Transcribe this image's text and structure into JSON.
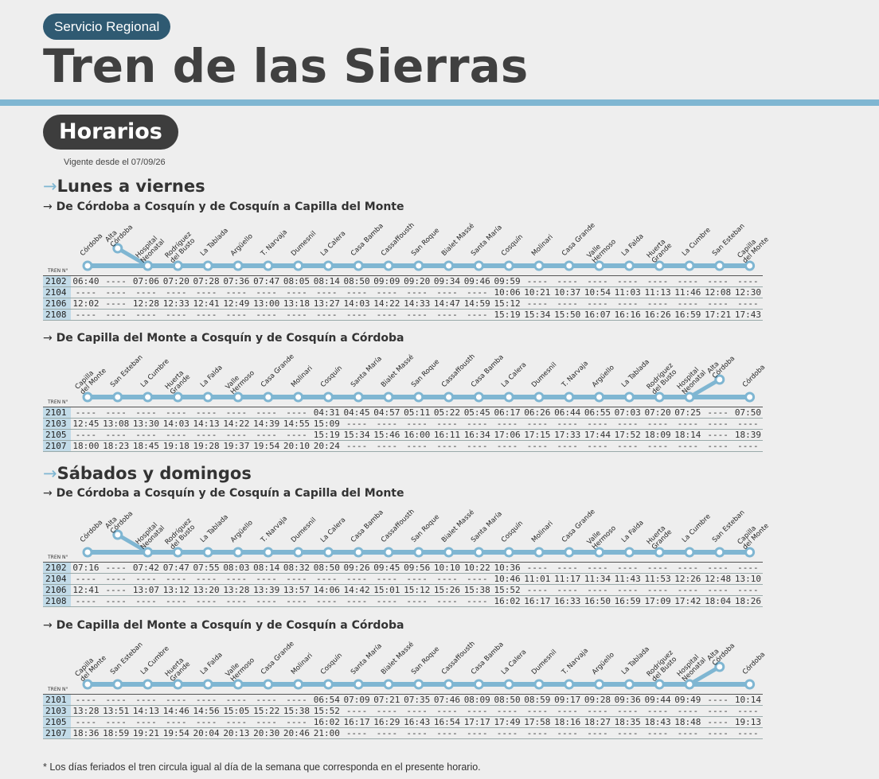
{
  "header": {
    "service": "Servicio Regional",
    "title": "Tren de las Sierras"
  },
  "horarios_label": "Horarios",
  "vigente": "Vigente desde el 07/09/26",
  "tren_label": "TREN N°",
  "footnote": "* Los días feriados el tren circula igual al día de la semana que corresponda en el presente horario.",
  "colors": {
    "accent": "#7fb6d2",
    "dark": "#3d3d3d",
    "pill": "#2f5a72",
    "train_cell": "#c2dbe8"
  },
  "sections": [
    {
      "title": "Lunes a viernes",
      "blocks": [
        {
          "subtitle": "De Córdoba a Cosquín y de Cosquín a Capilla del Monte",
          "stations": [
            "Córdoba",
            "Alta\nCórdoba",
            "Hospital\nNeonatal",
            "Rodríguez\ndel Busto",
            "La Tablada",
            "Argüello",
            "T. Narvaja",
            "Dumesnil",
            "La Calera",
            "Casa Bamba",
            "Cassaffousth",
            "San Roque",
            "Bialet Massé",
            "Santa María",
            "Cosquín",
            "Molinari",
            "Casa Grande",
            "Valle\nHermoso",
            "La Falda",
            "Huerta\nGrande",
            "La Cumbre",
            "San Esteban",
            "Capilla\ndel Monte"
          ],
          "rows": [
            [
              "2102",
              "06:40",
              "----",
              "07:06",
              "07:20",
              "07:28",
              "07:36",
              "07:47",
              "08:05",
              "08:14",
              "08:50",
              "09:09",
              "09:20",
              "09:34",
              "09:46",
              "09:59",
              "----",
              "----",
              "----",
              "----",
              "----",
              "----",
              "----",
              "----"
            ],
            [
              "2104",
              "----",
              "----",
              "----",
              "----",
              "----",
              "----",
              "----",
              "----",
              "----",
              "----",
              "----",
              "----",
              "----",
              "----",
              "10:06",
              "10:21",
              "10:37",
              "10:54",
              "11:03",
              "11:13",
              "11:46",
              "12:08",
              "12:30"
            ],
            [
              "2106",
              "12:02",
              "----",
              "12:28",
              "12:33",
              "12:41",
              "12:49",
              "13:00",
              "13:18",
              "13:27",
              "14:03",
              "14:22",
              "14:33",
              "14:47",
              "14:59",
              "15:12",
              "----",
              "----",
              "----",
              "----",
              "----",
              "----",
              "----",
              "----"
            ],
            [
              "2108",
              "----",
              "----",
              "----",
              "----",
              "----",
              "----",
              "----",
              "----",
              "----",
              "----",
              "----",
              "----",
              "----",
              "----",
              "15:19",
              "15:34",
              "15:50",
              "16:07",
              "16:16",
              "16:26",
              "16:59",
              "17:21",
              "17:43"
            ]
          ]
        },
        {
          "subtitle": "De Capilla del Monte a Cosquín y de Cosquín a Córdoba",
          "stations": [
            "Capilla\ndel Monte",
            "San Esteban",
            "La Cumbre",
            "Huerta\nGrande",
            "La Falda",
            "Valle\nHermoso",
            "Casa Grande",
            "Molinari",
            "Cosquín",
            "Santa María",
            "Bialet Massé",
            "San Roque",
            "Cassaffousth",
            "Casa Bamba",
            "La Calera",
            "Dumesnil",
            "T. Narvaja",
            "Argüello",
            "La Tablada",
            "Rodríguez\ndel Busto",
            "Hospital\nNeonatal",
            "Alta\nCórdoba",
            "Córdoba"
          ],
          "rows": [
            [
              "2101",
              "----",
              "----",
              "----",
              "----",
              "----",
              "----",
              "----",
              "----",
              "04:31",
              "04:45",
              "04:57",
              "05:11",
              "05:22",
              "05:45",
              "06:17",
              "06:26",
              "06:44",
              "06:55",
              "07:03",
              "07:20",
              "07:25",
              "----",
              "07:50"
            ],
            [
              "2103",
              "12:45",
              "13:08",
              "13:30",
              "14:03",
              "14:13",
              "14:22",
              "14:39",
              "14:55",
              "15:09",
              "----",
              "----",
              "----",
              "----",
              "----",
              "----",
              "----",
              "----",
              "----",
              "----",
              "----",
              "----",
              "----",
              "----"
            ],
            [
              "2105",
              "----",
              "----",
              "----",
              "----",
              "----",
              "----",
              "----",
              "----",
              "15:19",
              "15:34",
              "15:46",
              "16:00",
              "16:11",
              "16:34",
              "17:06",
              "17:15",
              "17:33",
              "17:44",
              "17:52",
              "18:09",
              "18:14",
              "----",
              "18:39"
            ],
            [
              "2107",
              "18:00",
              "18:23",
              "18:45",
              "19:18",
              "19:28",
              "19:37",
              "19:54",
              "20:10",
              "20:24",
              "----",
              "----",
              "----",
              "----",
              "----",
              "----",
              "----",
              "----",
              "----",
              "----",
              "----",
              "----",
              "----",
              "----"
            ]
          ]
        }
      ]
    },
    {
      "title": "Sábados y domingos",
      "blocks": [
        {
          "subtitle": "De Córdoba a Cosquín y de Cosquín a Capilla del Monte",
          "stations": [
            "Córdoba",
            "Alta\nCórdoba",
            "Hospital\nNeonatal",
            "Rodríguez\ndel Busto",
            "La Tablada",
            "Argüello",
            "T. Narvaja",
            "Dumesnil",
            "La Calera",
            "Casa Bamba",
            "Cassaffousth",
            "San Roque",
            "Bialet Massé",
            "Santa María",
            "Cosquín",
            "Molinari",
            "Casa Grande",
            "Valle\nHermoso",
            "La Falda",
            "Huerta\nGrande",
            "La Cumbre",
            "San Esteban",
            "Capilla\ndel Monte"
          ],
          "rows": [
            [
              "2102",
              "07:16",
              "----",
              "07:42",
              "07:47",
              "07:55",
              "08:03",
              "08:14",
              "08:32",
              "08:50",
              "09:26",
              "09:45",
              "09:56",
              "10:10",
              "10:22",
              "10:36",
              "----",
              "----",
              "----",
              "----",
              "----",
              "----",
              "----",
              "----"
            ],
            [
              "2104",
              "----",
              "----",
              "----",
              "----",
              "----",
              "----",
              "----",
              "----",
              "----",
              "----",
              "----",
              "----",
              "----",
              "----",
              "10:46",
              "11:01",
              "11:17",
              "11:34",
              "11:43",
              "11:53",
              "12:26",
              "12:48",
              "13:10"
            ],
            [
              "2106",
              "12:41",
              "----",
              "13:07",
              "13:12",
              "13:20",
              "13:28",
              "13:39",
              "13:57",
              "14:06",
              "14:42",
              "15:01",
              "15:12",
              "15:26",
              "15:38",
              "15:52",
              "----",
              "----",
              "----",
              "----",
              "----",
              "----",
              "----",
              "----"
            ],
            [
              "2108",
              "----",
              "----",
              "----",
              "----",
              "----",
              "----",
              "----",
              "----",
              "----",
              "----",
              "----",
              "----",
              "----",
              "----",
              "16:02",
              "16:17",
              "16:33",
              "16:50",
              "16:59",
              "17:09",
              "17:42",
              "18:04",
              "18:26"
            ]
          ]
        },
        {
          "subtitle": "De Capilla del Monte a Cosquín y de Cosquín a Córdoba",
          "stations": [
            "Capilla\ndel Monte",
            "San Esteban",
            "La Cumbre",
            "Huerta\nGrande",
            "La Falda",
            "Valle\nHermoso",
            "Casa Grande",
            "Molinari",
            "Cosquín",
            "Santa María",
            "Bialet Massé",
            "San Roque",
            "Cassaffousth",
            "Casa Bamba",
            "La Calera",
            "Dumesnil",
            "T. Narvaja",
            "Argüello",
            "La Tablada",
            "Rodríguez\ndel Busto",
            "Hospital\nNeonatal",
            "Alta\nCórdoba",
            "Córdoba"
          ],
          "rows": [
            [
              "2101",
              "----",
              "----",
              "----",
              "----",
              "----",
              "----",
              "----",
              "----",
              "06:54",
              "07:09",
              "07:21",
              "07:35",
              "07:46",
              "08:09",
              "08:50",
              "08:59",
              "09:17",
              "09:28",
              "09:36",
              "09:44",
              "09:49",
              "----",
              "10:14"
            ],
            [
              "2103",
              "13:28",
              "13:51",
              "14:13",
              "14:46",
              "14:56",
              "15:05",
              "15:22",
              "15:38",
              "15:52",
              "----",
              "----",
              "----",
              "----",
              "----",
              "----",
              "----",
              "----",
              "----",
              "----",
              "----",
              "----",
              "----",
              "----"
            ],
            [
              "2105",
              "----",
              "----",
              "----",
              "----",
              "----",
              "----",
              "----",
              "----",
              "16:02",
              "16:17",
              "16:29",
              "16:43",
              "16:54",
              "17:17",
              "17:49",
              "17:58",
              "18:16",
              "18:27",
              "18:35",
              "18:43",
              "18:48",
              "----",
              "19:13"
            ],
            [
              "2107",
              "18:36",
              "18:59",
              "19:21",
              "19:54",
              "20:04",
              "20:13",
              "20:30",
              "20:46",
              "21:00",
              "----",
              "----",
              "----",
              "----",
              "----",
              "----",
              "----",
              "----",
              "----",
              "----",
              "----",
              "----",
              "----",
              "----"
            ]
          ]
        }
      ]
    }
  ]
}
